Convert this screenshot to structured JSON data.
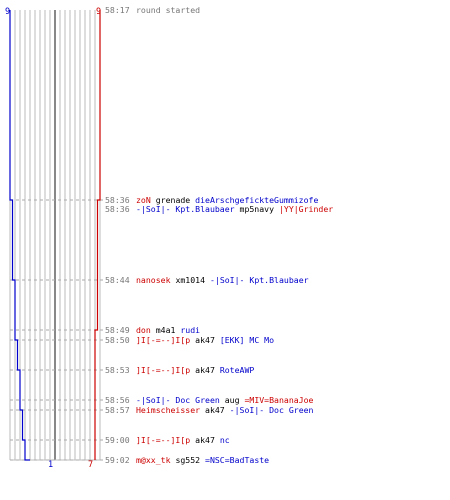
{
  "chart_data": {
    "type": "line",
    "title": "",
    "xlabel": "",
    "ylabel": "",
    "time_axis": "clock (mm:ss)",
    "ylim": [
      "58:17",
      "59:02"
    ],
    "scores": {
      "blue_start": 9,
      "red_start": 9,
      "blue_end": 1,
      "red_end": 7
    },
    "series": [
      {
        "color": "#0000cc",
        "points": [
          {
            "time": "58:17",
            "players_left": 9
          },
          {
            "time": "58:36",
            "players_left": 8
          },
          {
            "time": "58:44",
            "players_left": 7
          },
          {
            "time": "58:50",
            "players_left": 6
          },
          {
            "time": "58:53",
            "players_left": 5
          },
          {
            "time": "58:57",
            "players_left": 4
          },
          {
            "time": "59:00",
            "players_left": 3
          },
          {
            "time": "59:02",
            "players_left": 1
          }
        ]
      },
      {
        "color": "#cc0000",
        "points": [
          {
            "time": "58:17",
            "players_left": 9
          },
          {
            "time": "58:36",
            "players_left": 8
          },
          {
            "time": "58:49",
            "players_left": 7
          },
          {
            "time": "58:56",
            "players_left": 7
          },
          {
            "time": "59:02",
            "players_left": 7
          }
        ]
      }
    ],
    "colors": {
      "blue": "#0000cc",
      "red": "#cc0000",
      "text_time": "#777777",
      "grid": "#bbbbbb",
      "grid_dark": "#555555"
    },
    "events": [
      {
        "time": "58:17",
        "parts": [
          {
            "text": "round started",
            "color": "gray"
          }
        ]
      },
      {
        "time": "58:36",
        "parts": [
          {
            "text": "zoN",
            "color": "red"
          },
          {
            "text": "grenade",
            "color": "black"
          },
          {
            "text": "dieArschgefickteGummizofe",
            "color": "blue"
          }
        ]
      },
      {
        "time": "58:36",
        "parts": [
          {
            "text": "-|SoI|- Kpt.Blaubaer",
            "color": "blue"
          },
          {
            "text": "mp5navy",
            "color": "black"
          },
          {
            "text": "|YY|Grinder",
            "color": "red"
          }
        ]
      },
      {
        "time": "58:44",
        "parts": [
          {
            "text": "nanosek",
            "color": "red"
          },
          {
            "text": "xm1014",
            "color": "black"
          },
          {
            "text": "-|SoI|- Kpt.Blaubaer",
            "color": "blue"
          }
        ]
      },
      {
        "time": "58:49",
        "parts": [
          {
            "text": "don",
            "color": "red"
          },
          {
            "text": "m4a1",
            "color": "black"
          },
          {
            "text": "rudi",
            "color": "blue"
          }
        ]
      },
      {
        "time": "58:50",
        "parts": [
          {
            "text": "]I[-=--]I[p",
            "color": "red"
          },
          {
            "text": "ak47",
            "color": "black"
          },
          {
            "text": "[EKK] MC Mo",
            "color": "blue"
          }
        ]
      },
      {
        "time": "58:53",
        "parts": [
          {
            "text": "]I[-=--]I[p",
            "color": "red"
          },
          {
            "text": "ak47",
            "color": "black"
          },
          {
            "text": "RoteAWP",
            "color": "blue"
          }
        ]
      },
      {
        "time": "58:56",
        "parts": [
          {
            "text": "-|SoI|- Doc Green",
            "color": "blue"
          },
          {
            "text": "aug",
            "color": "black"
          },
          {
            "text": "=MIV=BananaJoe",
            "color": "red"
          }
        ]
      },
      {
        "time": "58:57",
        "parts": [
          {
            "text": "Heimscheisser",
            "color": "red"
          },
          {
            "text": "ak47",
            "color": "black"
          },
          {
            "text": "-|SoI|- Doc Green",
            "color": "blue"
          }
        ]
      },
      {
        "time": "59:00",
        "parts": [
          {
            "text": "]I[-=--]I[p",
            "color": "red"
          },
          {
            "text": "ak47",
            "color": "black"
          },
          {
            "text": "nc",
            "color": "blue"
          }
        ]
      },
      {
        "time": "59:02",
        "parts": [
          {
            "text": "m@xx_tk",
            "color": "red"
          },
          {
            "text": "sg552",
            "color": "black"
          },
          {
            "text": "=NSC=BadTaste",
            "color": "blue"
          }
        ]
      }
    ]
  }
}
